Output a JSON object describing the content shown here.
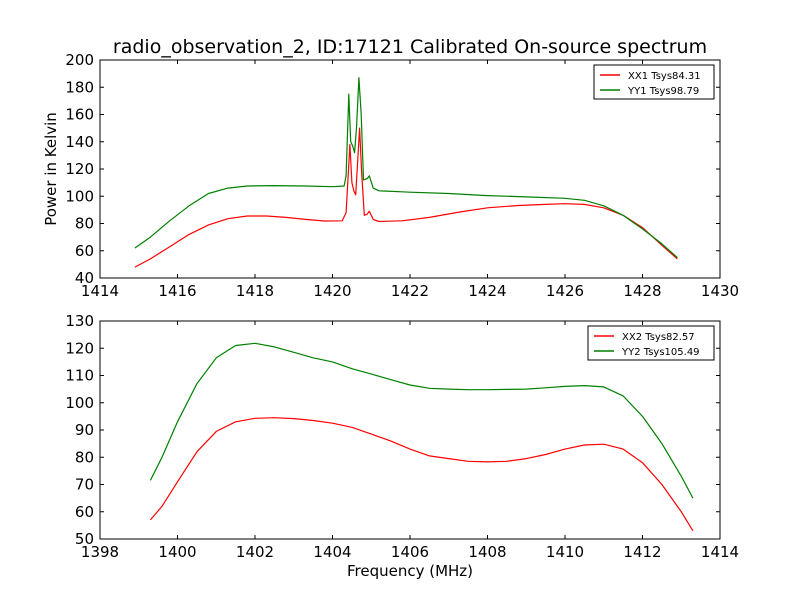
{
  "figure": {
    "title": "radio_observation_2, ID:17121 Calibrated On-source spectrum",
    "xlabel": "Frequency (MHz)"
  },
  "chart_data": [
    {
      "type": "line",
      "title": "radio_observation_2, ID:17121 Calibrated On-source spectrum",
      "xlabel": "",
      "ylabel": "Power in Kelvin",
      "xlim": [
        1414,
        1430
      ],
      "ylim": [
        40,
        200
      ],
      "x_ticks": [
        "1414",
        "1416",
        "1418",
        "1420",
        "1422",
        "1424",
        "1426",
        "1428",
        "1430"
      ],
      "y_ticks": [
        "40",
        "60",
        "80",
        "100",
        "120",
        "140",
        "160",
        "180",
        "200"
      ],
      "grid": false,
      "legend": "top-right",
      "series": [
        {
          "name": "XX1 Tsys84.31",
          "color": "#ff0000",
          "points": [
            [
              1414.9,
              48
            ],
            [
              1415.3,
              54
            ],
            [
              1415.8,
              63
            ],
            [
              1416.3,
              72
            ],
            [
              1416.8,
              79
            ],
            [
              1417.3,
              83.5
            ],
            [
              1417.8,
              85.5
            ],
            [
              1418.3,
              85.5
            ],
            [
              1418.8,
              84.5
            ],
            [
              1419.3,
              83
            ],
            [
              1419.8,
              81.8
            ],
            [
              1420.25,
              82
            ],
            [
              1420.35,
              88
            ],
            [
              1420.45,
              138
            ],
            [
              1420.5,
              110
            ],
            [
              1420.55,
              104
            ],
            [
              1420.6,
              101
            ],
            [
              1420.7,
              150
            ],
            [
              1420.75,
              118
            ],
            [
              1420.82,
              86
            ],
            [
              1420.9,
              87
            ],
            [
              1420.95,
              89
            ],
            [
              1421.05,
              83
            ],
            [
              1421.2,
              81.5
            ],
            [
              1421.8,
              82
            ],
            [
              1422.5,
              84.5
            ],
            [
              1423.3,
              88.5
            ],
            [
              1424.0,
              91.5
            ],
            [
              1424.8,
              93.2
            ],
            [
              1425.5,
              94
            ],
            [
              1426.0,
              94.5
            ],
            [
              1426.5,
              94
            ],
            [
              1427.0,
              91.5
            ],
            [
              1427.5,
              86
            ],
            [
              1428.0,
              77
            ],
            [
              1428.5,
              64
            ],
            [
              1428.9,
              54
            ]
          ]
        },
        {
          "name": "YY1 Tsys98.79",
          "color": "#008000",
          "points": [
            [
              1414.9,
              62
            ],
            [
              1415.3,
              70
            ],
            [
              1415.8,
              82
            ],
            [
              1416.3,
              93
            ],
            [
              1416.8,
              102
            ],
            [
              1417.3,
              106
            ],
            [
              1417.8,
              107.5
            ],
            [
              1418.5,
              107.8
            ],
            [
              1419.3,
              107.5
            ],
            [
              1420.0,
              107
            ],
            [
              1420.3,
              107.5
            ],
            [
              1420.35,
              115
            ],
            [
              1420.42,
              175
            ],
            [
              1420.47,
              140
            ],
            [
              1420.52,
              137
            ],
            [
              1420.57,
              132
            ],
            [
              1420.62,
              150
            ],
            [
              1420.68,
              187
            ],
            [
              1420.74,
              160
            ],
            [
              1420.8,
              112
            ],
            [
              1420.9,
              113
            ],
            [
              1420.95,
              115
            ],
            [
              1421.05,
              106
            ],
            [
              1421.2,
              104
            ],
            [
              1422.0,
              103
            ],
            [
              1423.0,
              102
            ],
            [
              1424.0,
              100.5
            ],
            [
              1425.0,
              99.5
            ],
            [
              1426.0,
              98.5
            ],
            [
              1426.5,
              97
            ],
            [
              1427.0,
              93
            ],
            [
              1427.5,
              86
            ],
            [
              1428.0,
              76
            ],
            [
              1428.5,
              65
            ],
            [
              1428.9,
              55
            ]
          ]
        }
      ]
    },
    {
      "type": "line",
      "title": "",
      "xlabel": "Frequency (MHz)",
      "ylabel": "",
      "xlim": [
        1398,
        1414
      ],
      "ylim": [
        50,
        130
      ],
      "x_ticks": [
        "1398",
        "1400",
        "1402",
        "1404",
        "1406",
        "1408",
        "1410",
        "1412",
        "1414"
      ],
      "y_ticks": [
        "50",
        "60",
        "70",
        "80",
        "90",
        "100",
        "110",
        "120",
        "130"
      ],
      "grid": false,
      "legend": "top-right",
      "series": [
        {
          "name": "XX2 Tsys82.57",
          "color": "#ff0000",
          "points": [
            [
              1399.3,
              57
            ],
            [
              1399.6,
              62
            ],
            [
              1400.0,
              71
            ],
            [
              1400.5,
              82
            ],
            [
              1401.0,
              89.5
            ],
            [
              1401.5,
              93
            ],
            [
              1402.0,
              94.3
            ],
            [
              1402.5,
              94.5
            ],
            [
              1403.0,
              94.2
            ],
            [
              1403.5,
              93.5
            ],
            [
              1404.0,
              92.5
            ],
            [
              1404.5,
              91
            ],
            [
              1405.0,
              88.5
            ],
            [
              1405.5,
              86
            ],
            [
              1406.0,
              83
            ],
            [
              1406.5,
              80.5
            ],
            [
              1407.0,
              79.5
            ],
            [
              1407.5,
              78.5
            ],
            [
              1408.0,
              78.3
            ],
            [
              1408.5,
              78.5
            ],
            [
              1409.0,
              79.5
            ],
            [
              1409.5,
              81
            ],
            [
              1410.0,
              83
            ],
            [
              1410.5,
              84.5
            ],
            [
              1411.0,
              84.8
            ],
            [
              1411.5,
              83
            ],
            [
              1412.0,
              78
            ],
            [
              1412.5,
              70
            ],
            [
              1413.0,
              60
            ],
            [
              1413.3,
              53
            ]
          ]
        },
        {
          "name": "YY2 Tsys105.49",
          "color": "#008000",
          "points": [
            [
              1399.3,
              71.5
            ],
            [
              1399.6,
              80
            ],
            [
              1400.0,
              93
            ],
            [
              1400.5,
              107
            ],
            [
              1401.0,
              116.5
            ],
            [
              1401.5,
              121
            ],
            [
              1402.0,
              121.8
            ],
            [
              1402.5,
              120.5
            ],
            [
              1403.0,
              118.5
            ],
            [
              1403.5,
              116.5
            ],
            [
              1404.0,
              115
            ],
            [
              1404.5,
              112.5
            ],
            [
              1405.0,
              110.5
            ],
            [
              1405.5,
              108.5
            ],
            [
              1406.0,
              106.5
            ],
            [
              1406.5,
              105.3
            ],
            [
              1407.0,
              105
            ],
            [
              1407.5,
              104.8
            ],
            [
              1408.0,
              104.8
            ],
            [
              1408.5,
              104.9
            ],
            [
              1409.0,
              105
            ],
            [
              1409.5,
              105.5
            ],
            [
              1410.0,
              106
            ],
            [
              1410.5,
              106.3
            ],
            [
              1411.0,
              105.8
            ],
            [
              1411.5,
              102.5
            ],
            [
              1412.0,
              95
            ],
            [
              1412.5,
              85
            ],
            [
              1413.0,
              73
            ],
            [
              1413.3,
              65
            ]
          ]
        }
      ]
    }
  ]
}
